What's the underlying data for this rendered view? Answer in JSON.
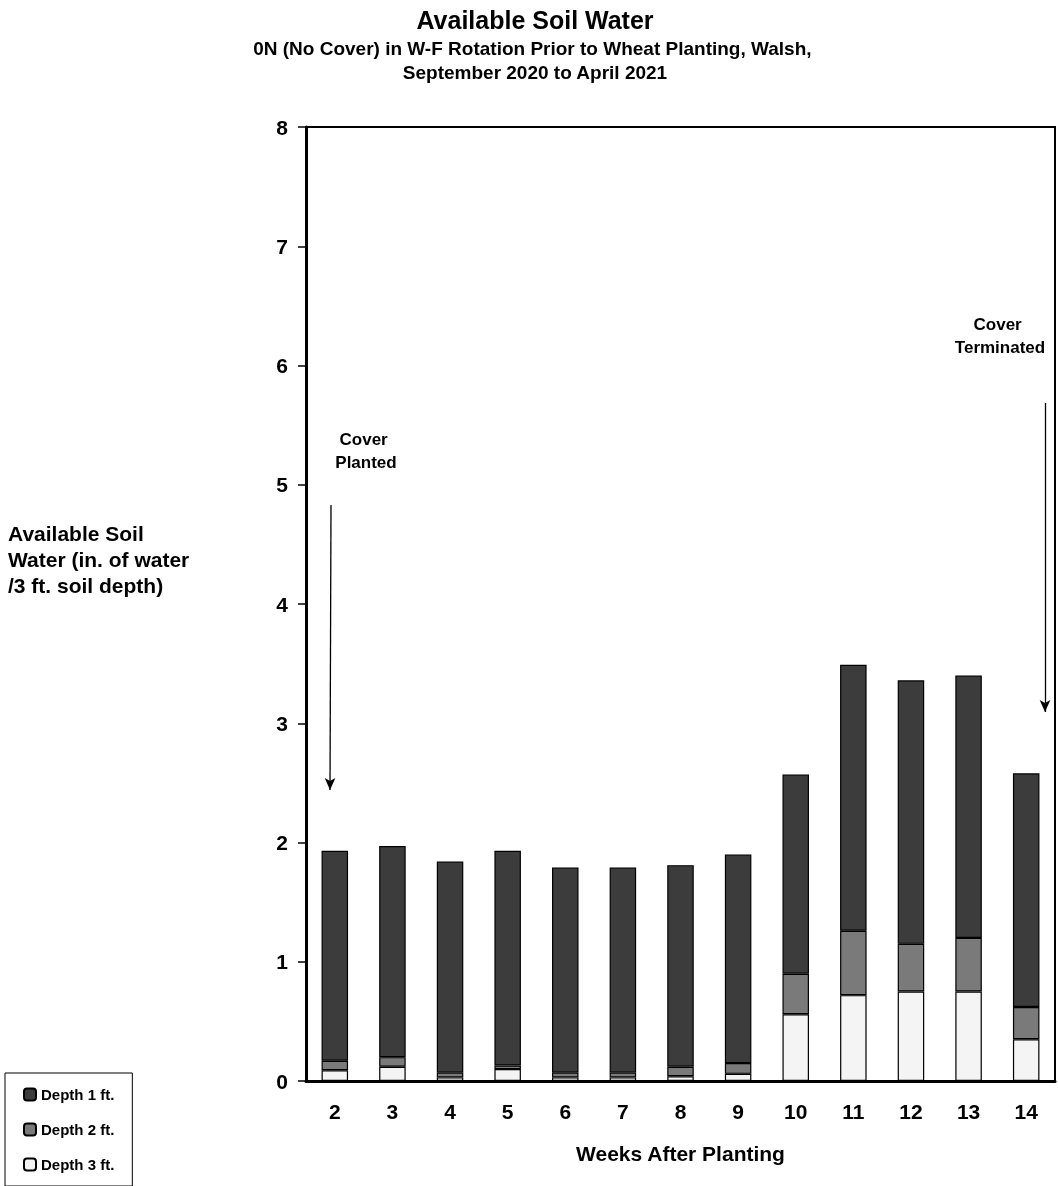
{
  "chart_data": {
    "type": "bar",
    "title": "Available Soil Water",
    "subtitle": "0N (No Cover) in W-F Rotation Prior to Wheat Planting, Walsh, September 2020 to April 2021",
    "xlabel": "Weeks After Planting",
    "ylabel": "Available Soil Water (in. of water/3 ft. soil depth)",
    "categories": [
      "2",
      "3",
      "4",
      "5",
      "6",
      "7",
      "8",
      "9",
      "10",
      "11",
      "12",
      "13",
      "14"
    ],
    "stacked": true,
    "series": [
      {
        "name": "Depth 3 ft.",
        "color": "#f4f4f4",
        "values": [
          0.09,
          0.12,
          0.03,
          0.1,
          0.03,
          0.03,
          0.04,
          0.06,
          0.56,
          0.72,
          0.75,
          0.75,
          0.35
        ]
      },
      {
        "name": "Depth 2 ft.",
        "color": "#7a7a7a",
        "values": [
          0.08,
          0.08,
          0.04,
          0.03,
          0.04,
          0.04,
          0.08,
          0.09,
          0.34,
          0.54,
          0.4,
          0.45,
          0.27
        ]
      },
      {
        "name": "Depth 1 ft.",
        "color": "#3c3c3c",
        "values": [
          1.76,
          1.77,
          1.77,
          1.8,
          1.72,
          1.72,
          1.69,
          1.75,
          1.67,
          2.23,
          2.21,
          2.2,
          1.96
        ]
      }
    ],
    "ylim": [
      0,
      8
    ],
    "yticks": [
      0,
      1,
      2,
      3,
      4,
      5,
      6,
      7,
      8
    ],
    "grid": false,
    "legend": "bottom left",
    "annotations": [
      "Cover Planted",
      "Cover Terminated"
    ]
  }
}
